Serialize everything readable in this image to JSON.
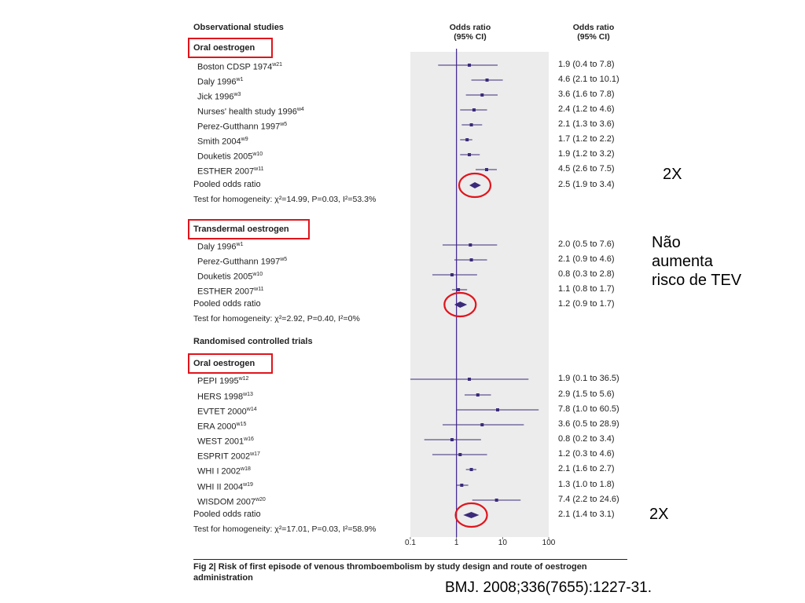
{
  "column_headers": {
    "left": "Observational studies",
    "middle": "Odds ratio\n(95% CI)",
    "right": "Odds ratio\n(95% CI)"
  },
  "chart_data": {
    "type": "forest",
    "x_scale": "log",
    "xlim": [
      0.1,
      100
    ],
    "x_ticks": [
      "0.1",
      "1",
      "10",
      "100"
    ],
    "reference_line": 1,
    "rows": [
      {
        "kind": "header",
        "label": "Oral oestrogen",
        "boxed": true
      },
      {
        "kind": "study",
        "label": "Boston CDSP 1974",
        "sup": "w21",
        "or": 1.9,
        "lo": 0.4,
        "hi": 7.8,
        "ci": "1.9 (0.4 to 7.8)"
      },
      {
        "kind": "study",
        "label": "Daly 1996",
        "sup": "w1",
        "or": 4.6,
        "lo": 2.1,
        "hi": 10.1,
        "ci": "4.6 (2.1 to 10.1)"
      },
      {
        "kind": "study",
        "label": "Jick 1996",
        "sup": "w3",
        "or": 3.6,
        "lo": 1.6,
        "hi": 7.8,
        "ci": "3.6 (1.6 to 7.8)"
      },
      {
        "kind": "study",
        "label": "Nurses' health study 1996",
        "sup": "w4",
        "or": 2.4,
        "lo": 1.2,
        "hi": 4.6,
        "ci": "2.4 (1.2 to 4.6)"
      },
      {
        "kind": "study",
        "label": "Perez-Gutthann 1997",
        "sup": "w5",
        "or": 2.1,
        "lo": 1.3,
        "hi": 3.6,
        "ci": "2.1 (1.3 to 3.6)"
      },
      {
        "kind": "study",
        "label": "Smith 2004",
        "sup": "w9",
        "or": 1.7,
        "lo": 1.2,
        "hi": 2.2,
        "ci": "1.7 (1.2 to 2.2)"
      },
      {
        "kind": "study",
        "label": "Douketis 2005",
        "sup": "w10",
        "or": 1.9,
        "lo": 1.2,
        "hi": 3.2,
        "ci": "1.9 (1.2 to 3.2)"
      },
      {
        "kind": "study",
        "label": "ESTHER 2007",
        "sup": "w11",
        "or": 4.5,
        "lo": 2.6,
        "hi": 7.5,
        "ci": "4.5 (2.6 to 7.5)"
      },
      {
        "kind": "pooled",
        "label": "Pooled odds ratio",
        "or": 2.5,
        "lo": 1.9,
        "hi": 3.4,
        "ci": "2.5 (1.9 to 3.4)",
        "circled": true
      },
      {
        "kind": "test",
        "label": "Test for homogeneity: χ²=14.99, P=0.03, I²=53.3%"
      },
      {
        "kind": "header",
        "label": "Transdermal oestrogen",
        "boxed": true
      },
      {
        "kind": "study",
        "label": "Daly 1996",
        "sup": "w1",
        "or": 2.0,
        "lo": 0.5,
        "hi": 7.6,
        "ci": "2.0 (0.5 to 7.6)"
      },
      {
        "kind": "study",
        "label": "Perez-Gutthann 1997",
        "sup": "w5",
        "or": 2.1,
        "lo": 0.9,
        "hi": 4.6,
        "ci": "2.1 (0.9 to 4.6)"
      },
      {
        "kind": "study",
        "label": "Douketis 2005",
        "sup": "w10",
        "or": 0.8,
        "lo": 0.3,
        "hi": 2.8,
        "ci": "0.8 (0.3 to 2.8)"
      },
      {
        "kind": "study",
        "label": "ESTHER 2007",
        "sup": "w11",
        "or": 1.1,
        "lo": 0.8,
        "hi": 1.7,
        "ci": "1.1 (0.8 to 1.7)"
      },
      {
        "kind": "pooled",
        "label": "Pooled odds ratio",
        "or": 1.2,
        "lo": 0.9,
        "hi": 1.7,
        "ci": "1.2 (0.9 to 1.7)",
        "circled": true
      },
      {
        "kind": "test",
        "label": "Test for homogeneity: χ²=2.92, P=0.40, I²=0%"
      },
      {
        "kind": "section",
        "label": "Randomised controlled trials"
      },
      {
        "kind": "header",
        "label": "Oral oestrogen",
        "boxed": true
      },
      {
        "kind": "study",
        "label": "PEPI 1995",
        "sup": "w12",
        "or": 1.9,
        "lo": 0.1,
        "hi": 36.5,
        "ci": "1.9 (0.1 to 36.5)"
      },
      {
        "kind": "study",
        "label": "HERS 1998",
        "sup": "w13",
        "or": 2.9,
        "lo": 1.5,
        "hi": 5.6,
        "ci": "2.9 (1.5 to 5.6)"
      },
      {
        "kind": "study",
        "label": "EVTET 2000",
        "sup": "w14",
        "or": 7.8,
        "lo": 1.0,
        "hi": 60.5,
        "ci": "7.8 (1.0 to 60.5)"
      },
      {
        "kind": "study",
        "label": "ERA 2000",
        "sup": "w15",
        "or": 3.6,
        "lo": 0.5,
        "hi": 28.9,
        "ci": "3.6 (0.5 to 28.9)"
      },
      {
        "kind": "study",
        "label": "WEST 2001",
        "sup": "w16",
        "or": 0.8,
        "lo": 0.2,
        "hi": 3.4,
        "ci": "0.8 (0.2 to 3.4)"
      },
      {
        "kind": "study",
        "label": "ESPRIT 2002",
        "sup": "w17",
        "or": 1.2,
        "lo": 0.3,
        "hi": 4.6,
        "ci": "1.2 (0.3 to 4.6)"
      },
      {
        "kind": "study",
        "label": "WHI I 2002",
        "sup": "w18",
        "or": 2.1,
        "lo": 1.6,
        "hi": 2.7,
        "ci": "2.1 (1.6 to 2.7)"
      },
      {
        "kind": "study",
        "label": "WHI II 2004",
        "sup": "w19",
        "or": 1.3,
        "lo": 1.0,
        "hi": 1.8,
        "ci": "1.3 (1.0 to 1.8)"
      },
      {
        "kind": "study",
        "label": "WISDOM 2007",
        "sup": "w20",
        "or": 7.4,
        "lo": 2.2,
        "hi": 24.6,
        "ci": "7.4 (2.2 to 24.6)"
      },
      {
        "kind": "pooled",
        "label": "Pooled odds ratio",
        "or": 2.1,
        "lo": 1.4,
        "hi": 3.1,
        "ci": "2.1 (1.4 to 3.1)",
        "circled": true
      },
      {
        "kind": "test",
        "label": "Test for homogeneity: χ²=17.01, P=0.03, I²=58.9%"
      }
    ]
  },
  "caption": {
    "fig": "Fig 2|",
    "text": " Risk of first episode of venous thromboembolism by study design and route of oestrogen administration"
  },
  "annotations": {
    "top": "2X",
    "middle": "Não\naumenta\nrisco de TEV",
    "bottom": "2X"
  },
  "citation": "BMJ. 2008;336(7655):1227-31.",
  "colors": {
    "marker": "#3b2a7a",
    "reference_line": "#3b1f8f",
    "plot_bg": "#ececec",
    "highlight": "#e0141c"
  }
}
